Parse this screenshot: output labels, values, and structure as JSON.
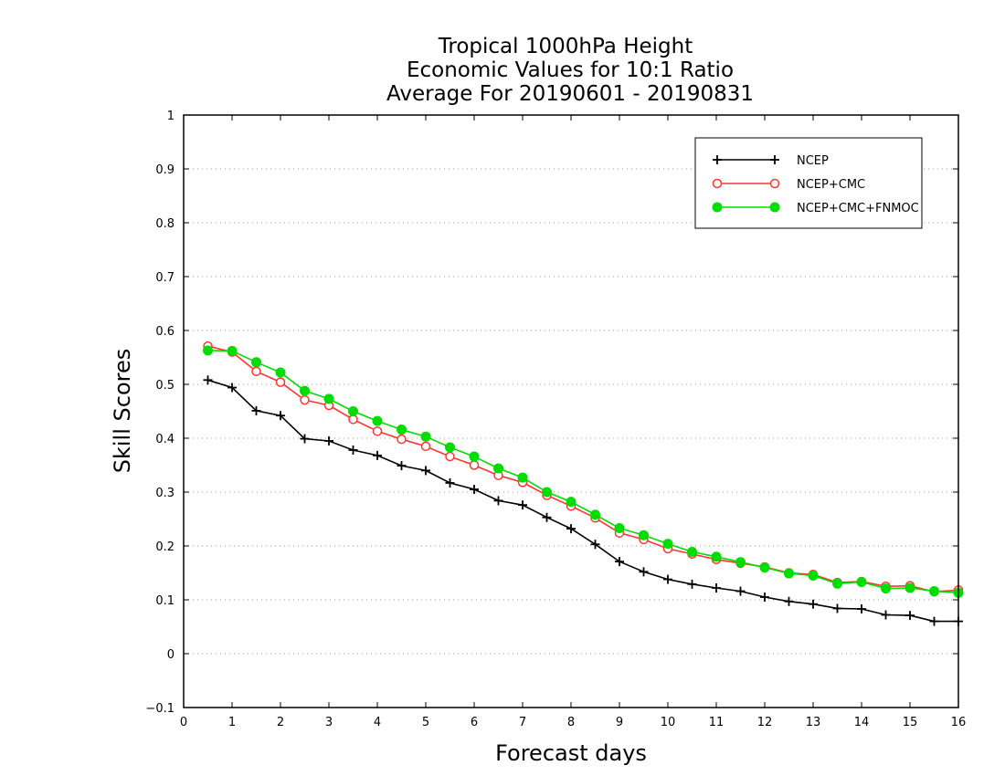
{
  "chart_data": {
    "type": "line",
    "title_lines": [
      "Tropical 1000hPa Height",
      "Economic Values for 10:1 Ratio",
      "Average For 20190601 - 20190831"
    ],
    "xlabel": "Forecast days",
    "ylabel": "Skill Scores",
    "xlim": [
      0,
      16
    ],
    "ylim": [
      -0.1,
      1
    ],
    "x_ticks": [
      0,
      1,
      2,
      3,
      4,
      5,
      6,
      7,
      8,
      9,
      10,
      11,
      12,
      13,
      14,
      15,
      16
    ],
    "y_ticks": [
      -0.1,
      0,
      0.1,
      0.2,
      0.3,
      0.4,
      0.5,
      0.6,
      0.7,
      0.8,
      0.9,
      1
    ],
    "y_tick_labels": [
      "−0.1",
      "0",
      "0.1",
      "0.2",
      "0.3",
      "0.4",
      "0.5",
      "0.6",
      "0.7",
      "0.8",
      "0.9",
      "1"
    ],
    "grid": "horizontal dotted",
    "legend_position": "top-right",
    "x": [
      0.5,
      1.0,
      1.5,
      2.0,
      2.5,
      3.0,
      3.5,
      4.0,
      4.5,
      5.0,
      5.5,
      6.0,
      6.5,
      7.0,
      7.5,
      8.0,
      8.5,
      9.0,
      9.5,
      10.0,
      10.5,
      11.0,
      11.5,
      12.0,
      12.5,
      13.0,
      13.5,
      14.0,
      14.5,
      15.0,
      15.5,
      16.0
    ],
    "series": [
      {
        "name": "NCEP",
        "color": "#000000",
        "marker": "plus",
        "values": [
          0.508,
          0.494,
          0.451,
          0.442,
          0.399,
          0.395,
          0.378,
          0.368,
          0.349,
          0.34,
          0.317,
          0.305,
          0.284,
          0.276,
          0.253,
          0.232,
          0.203,
          0.171,
          0.152,
          0.138,
          0.129,
          0.122,
          0.116,
          0.105,
          0.097,
          0.092,
          0.084,
          0.083,
          0.072,
          0.071,
          0.06,
          0.06
        ]
      },
      {
        "name": "NCEP+CMC",
        "color": "#ff3333",
        "marker": "open-circle",
        "values": [
          0.571,
          0.56,
          0.524,
          0.504,
          0.471,
          0.461,
          0.435,
          0.413,
          0.398,
          0.385,
          0.366,
          0.35,
          0.331,
          0.318,
          0.294,
          0.274,
          0.252,
          0.224,
          0.212,
          0.195,
          0.185,
          0.175,
          0.168,
          0.161,
          0.15,
          0.147,
          0.132,
          0.134,
          0.125,
          0.126,
          0.115,
          0.118
        ]
      },
      {
        "name": "NCEP+CMC+FNMOC",
        "color": "#00dd00",
        "marker": "filled-circle",
        "values": [
          0.563,
          0.562,
          0.541,
          0.522,
          0.488,
          0.473,
          0.45,
          0.432,
          0.416,
          0.403,
          0.383,
          0.366,
          0.344,
          0.327,
          0.3,
          0.282,
          0.258,
          0.233,
          0.22,
          0.204,
          0.189,
          0.18,
          0.17,
          0.16,
          0.149,
          0.145,
          0.13,
          0.133,
          0.121,
          0.122,
          0.116,
          0.113
        ]
      }
    ]
  }
}
